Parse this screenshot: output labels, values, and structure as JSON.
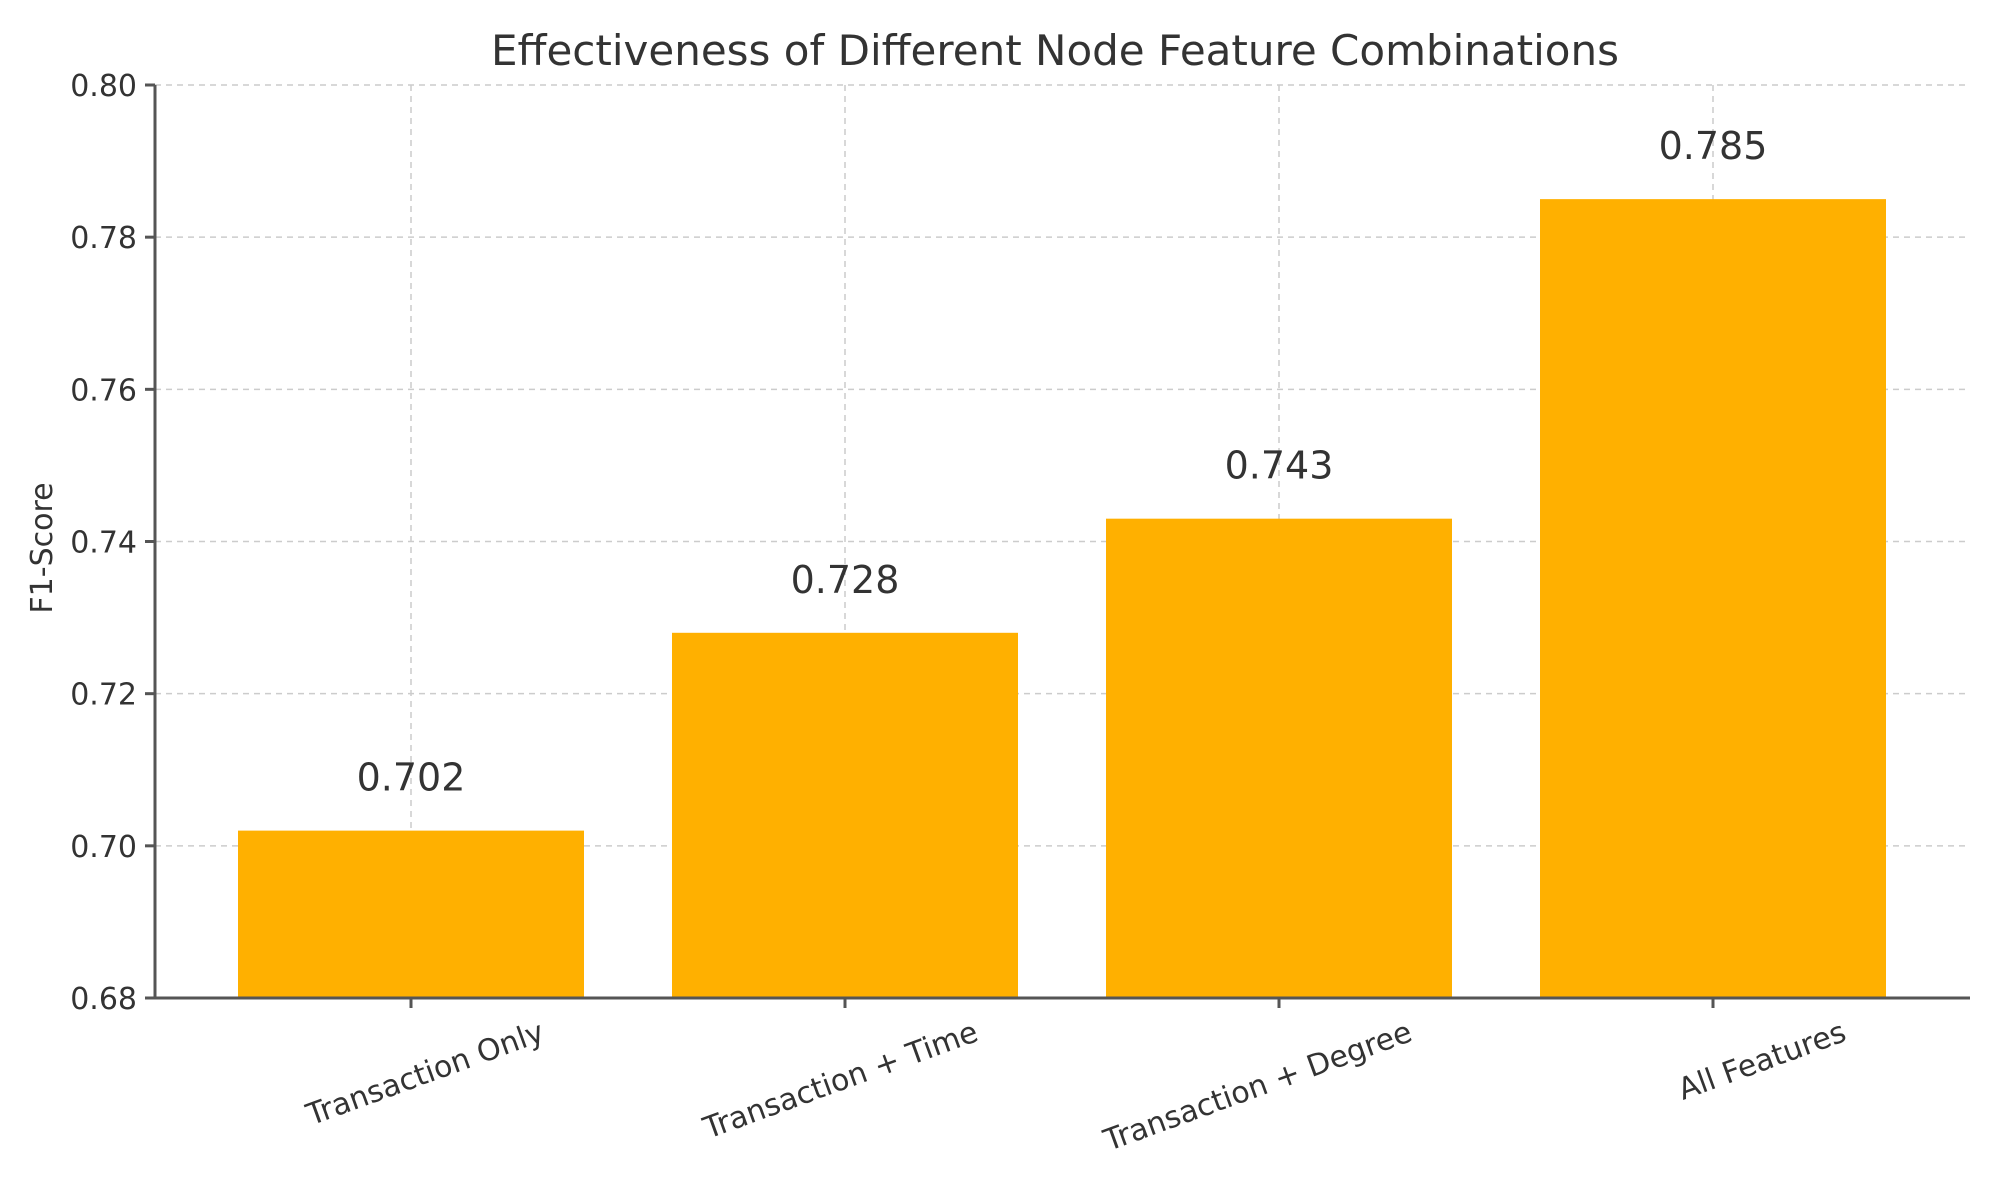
{
  "chart_data": {
    "type": "bar",
    "title": "Effectiveness of Different Node Feature Combinations",
    "xlabel": "",
    "ylabel": "F1-Score",
    "categories": [
      "Transaction Only",
      "Transaction + Time",
      "Transaction + Degree",
      "All Features"
    ],
    "values": [
      0.702,
      0.728,
      0.743,
      0.785
    ],
    "value_labels": [
      "0.702",
      "0.728",
      "0.743",
      "0.785"
    ],
    "ylim": [
      0.68,
      0.8
    ],
    "yticks": [
      0.68,
      0.7,
      0.72,
      0.74,
      0.76,
      0.78,
      0.8
    ],
    "ytick_labels": [
      "0.68",
      "0.70",
      "0.72",
      "0.74",
      "0.76",
      "0.78",
      "0.80"
    ],
    "grid": true,
    "bar_color": "#FFB000"
  }
}
